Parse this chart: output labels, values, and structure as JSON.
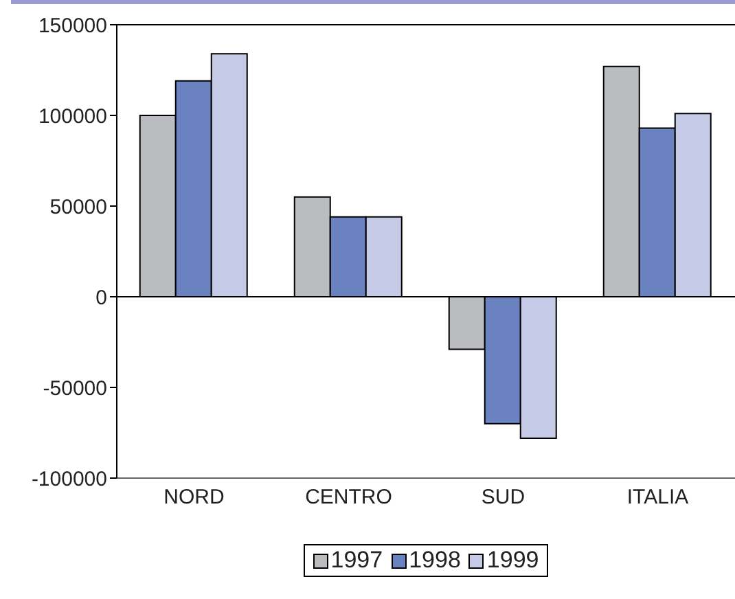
{
  "chart_data": {
    "type": "bar",
    "categories": [
      "NORD",
      "CENTRO",
      "SUD",
      "ITALIA"
    ],
    "series": [
      {
        "name": "1997",
        "color": "#bbbcc0",
        "values": [
          100000,
          55000,
          -29000,
          127000
        ]
      },
      {
        "name": "1998",
        "color": "#6a82c0",
        "values": [
          119000,
          44000,
          -70000,
          93000
        ]
      },
      {
        "name": "1999",
        "color": "#c5cae6",
        "values": [
          134000,
          44000,
          -78000,
          101000
        ]
      }
    ],
    "ylim": [
      -100000,
      150000
    ],
    "yticks": [
      -100000,
      -50000,
      0,
      50000,
      100000,
      150000
    ],
    "legend": "bottom"
  }
}
